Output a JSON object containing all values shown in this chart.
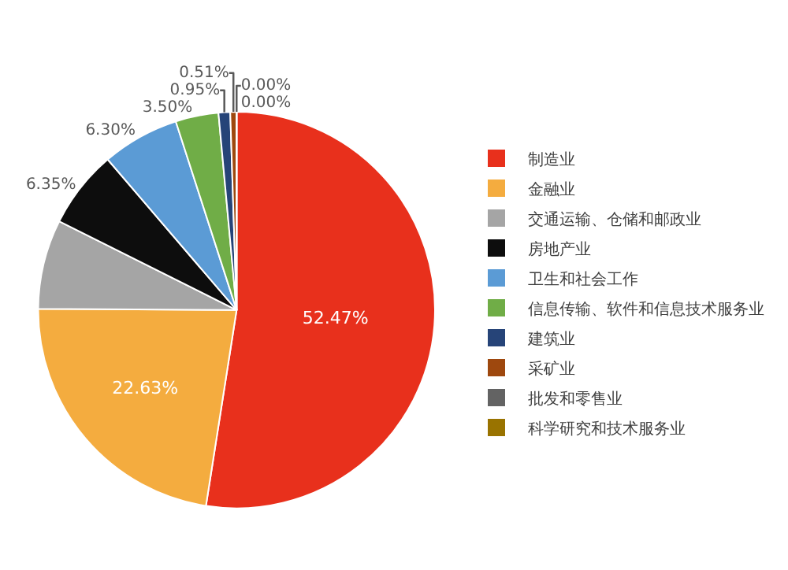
{
  "chart_data": {
    "type": "pie",
    "categories": [
      "制造业",
      "金融业",
      "交通运输、仓储和邮政业",
      "房地产业",
      "卫生和社会工作",
      "信息传输、软件和信息技术服务业",
      "建筑业",
      "采矿业",
      "批发和零售业",
      "科学研究和技术服务业"
    ],
    "values": [
      52.47,
      22.63,
      7.29,
      6.35,
      6.3,
      3.5,
      0.95,
      0.51,
      0.0,
      0.0
    ],
    "value_labels": [
      "52.47%",
      "22.63%",
      null,
      "6.35%",
      "6.30%",
      "3.50%",
      "0.95%",
      "0.51%",
      "0.00%",
      "0.00%"
    ],
    "colors": [
      "#e8301c",
      "#f4ac3f",
      "#a5a5a5",
      "#0d0d0d",
      "#5b9bd5",
      "#70ad47",
      "#264478",
      "#9e480e",
      "#636363",
      "#997300"
    ],
    "legend": "right"
  }
}
